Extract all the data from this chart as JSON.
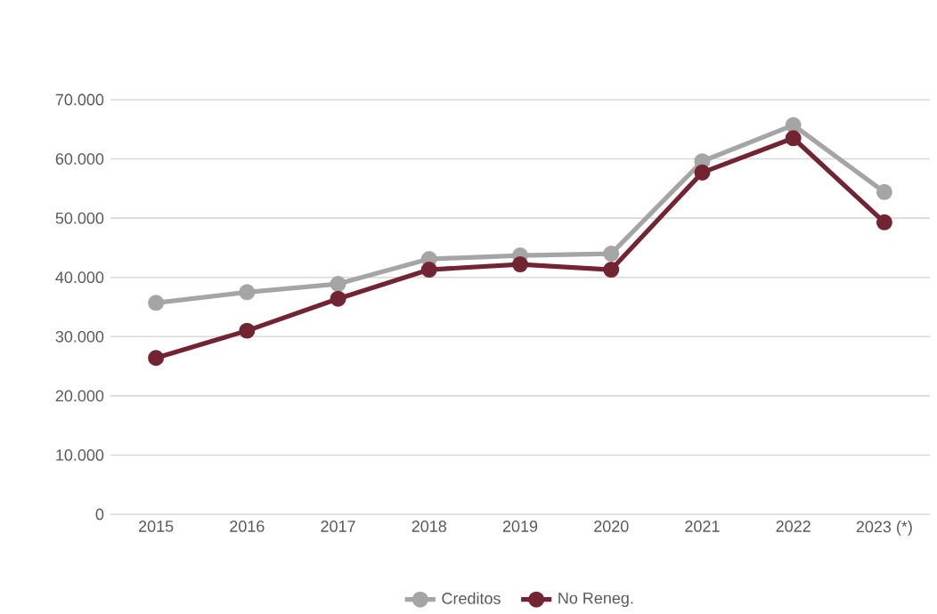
{
  "chart_data": {
    "type": "line",
    "categories": [
      "2015",
      "2016",
      "2017",
      "2018",
      "2019",
      "2020",
      "2021",
      "2022",
      "2023 (*)"
    ],
    "series": [
      {
        "name": "Creditos",
        "color": "#a5a5a5",
        "values": [
          35700,
          37500,
          38900,
          43100,
          43700,
          44000,
          59600,
          65700,
          54400
        ]
      },
      {
        "name": "No Reneg.",
        "color": "#722432",
        "values": [
          26400,
          31000,
          36400,
          41300,
          42200,
          41300,
          57700,
          63500,
          49300
        ]
      }
    ],
    "ylim": [
      0,
      70000
    ],
    "yticks": [
      0,
      {
        "value": 10000,
        "label": "10.000"
      },
      {
        "value": 20000,
        "label": "20.000"
      },
      {
        "value": 30000,
        "label": "30.000"
      },
      {
        "value": 40000,
        "label": "40.000"
      },
      {
        "value": 50000,
        "label": "50.000"
      },
      {
        "value": 60000,
        "label": "60.000"
      },
      {
        "value": 70000,
        "label": "70.000"
      }
    ],
    "grid": "y",
    "legend": "bottom",
    "marker": "circle",
    "line_style": "solid"
  }
}
